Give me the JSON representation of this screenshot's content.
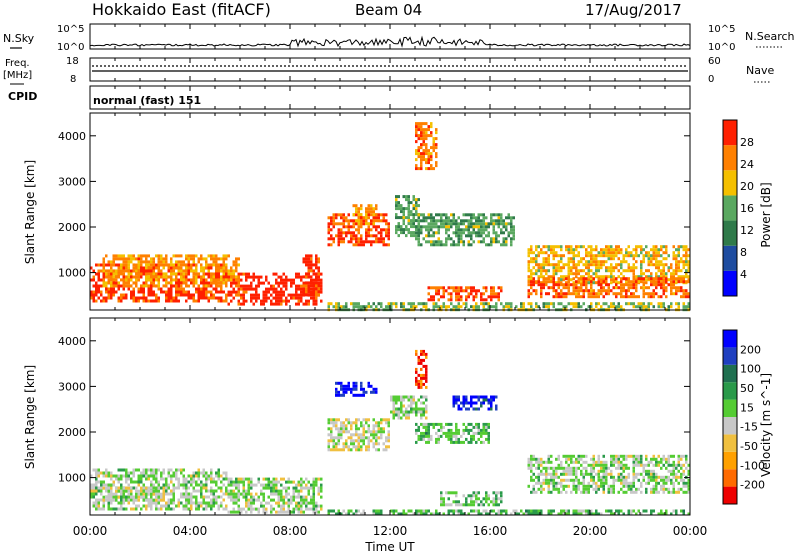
{
  "header": {
    "station": "Hokkaido East (fitACF)",
    "beam": "Beam 04",
    "date": "17/Aug/2017"
  },
  "top_panels": {
    "nsky_label": "N.Sky",
    "nsky_ticks": [
      "10^5",
      "10^0"
    ],
    "nsearch_label": "N.Search",
    "nsearch_ticks": [
      "10^5",
      "10^0"
    ],
    "freq_label_1": "Freq.",
    "freq_label_2": "[MHz]",
    "freq_ticks": [
      "18",
      "8"
    ],
    "nave_label": "Nave",
    "nave_ticks": [
      "60",
      "0"
    ],
    "cpid_label": "CPID",
    "cpid_text": "normal (fast) 151"
  },
  "x_axis": {
    "ticks": [
      "00:00",
      "04:00",
      "08:00",
      "12:00",
      "16:00",
      "20:00",
      "00:00"
    ],
    "label": "Time UT"
  },
  "colors": {
    "power": [
      "#0000ff",
      "#1e4ca0",
      "#2f7a4a",
      "#5aa860",
      "#f5c000",
      "#ff8000",
      "#ff2000"
    ],
    "velocity": [
      "#ee0000",
      "#ff6a00",
      "#ffa000",
      "#f0c040",
      "#c8c8c8",
      "#55cc33",
      "#2a9a4a",
      "#207050",
      "#2040c0",
      "#0000ff"
    ]
  },
  "chart_data": [
    {
      "type": "heatmap",
      "name": "power",
      "ylabel": "Slant Range [km]",
      "yticks": [
        "4000",
        "3000",
        "2000",
        "1000"
      ],
      "ylim": [
        180,
        4500
      ],
      "xlim_hours": [
        0,
        24
      ],
      "colorbar_label": "Power [dB]",
      "colorbar_ticks": [
        "28",
        "24",
        "20",
        "16",
        "12",
        "8",
        "4"
      ],
      "colorbar_range": [
        0,
        30
      ],
      "regions": [
        {
          "t": [
            0.0,
            5.5
          ],
          "r": [
            400,
            1200
          ],
          "value": 27
        },
        {
          "t": [
            5.5,
            9.3
          ],
          "r": [
            300,
            1000
          ],
          "value": 29
        },
        {
          "t": [
            0.5,
            6.0
          ],
          "r": [
            700,
            1400
          ],
          "value": 22
        },
        {
          "t": [
            8.5,
            9.2
          ],
          "r": [
            500,
            1400
          ],
          "value": 27
        },
        {
          "t": [
            9.5,
            12.0
          ],
          "r": [
            1600,
            2300
          ],
          "value": 27
        },
        {
          "t": [
            10.5,
            11.5
          ],
          "r": [
            2100,
            2500
          ],
          "value": 22
        },
        {
          "t": [
            12.2,
            13.2
          ],
          "r": [
            1800,
            2700
          ],
          "value": 14
        },
        {
          "t": [
            13.0,
            13.8
          ],
          "r": [
            3300,
            4300
          ],
          "value": 24
        },
        {
          "t": [
            13.0,
            17.0
          ],
          "r": [
            1600,
            2300
          ],
          "value": 14
        },
        {
          "t": [
            13.5,
            16.5
          ],
          "r": [
            400,
            700
          ],
          "value": 26
        },
        {
          "t": [
            17.5,
            24.0
          ],
          "r": [
            800,
            1600
          ],
          "value": 20
        },
        {
          "t": [
            17.5,
            24.0
          ],
          "r": [
            500,
            900
          ],
          "value": 25
        },
        {
          "t": [
            9.5,
            24.0
          ],
          "r": [
            200,
            350
          ],
          "value": 16
        }
      ]
    },
    {
      "type": "heatmap",
      "name": "velocity",
      "ylabel": "Slant Range [km]",
      "yticks": [
        "4000",
        "3000",
        "2000",
        "1000"
      ],
      "ylim": [
        180,
        4500
      ],
      "xlim_hours": [
        0,
        24
      ],
      "colorbar_label": "Velocity [m s^-1]",
      "colorbar_ticks": [
        "200",
        "100",
        "50",
        "15",
        "-15",
        "-50",
        "-100",
        "-200"
      ],
      "colorbar_range": [
        -250,
        250
      ],
      "regions": [
        {
          "t": [
            0.0,
            5.5
          ],
          "r": [
            300,
            1200
          ],
          "value": 0
        },
        {
          "t": [
            5.5,
            9.3
          ],
          "r": [
            250,
            1000
          ],
          "value": 0
        },
        {
          "t": [
            0.5,
            3.0
          ],
          "r": [
            500,
            800
          ],
          "value": -20
        },
        {
          "t": [
            9.5,
            12.0
          ],
          "r": [
            1600,
            2300
          ],
          "value": -30
        },
        {
          "t": [
            9.8,
            11.5
          ],
          "r": [
            2800,
            3100
          ],
          "value": 220
        },
        {
          "t": [
            12.0,
            13.5
          ],
          "r": [
            2300,
            2800
          ],
          "value": 0
        },
        {
          "t": [
            13.0,
            13.5
          ],
          "r": [
            3000,
            3800
          ],
          "value": -200
        },
        {
          "t": [
            14.5,
            16.3
          ],
          "r": [
            2500,
            2800
          ],
          "value": 200
        },
        {
          "t": [
            13.0,
            16.0
          ],
          "r": [
            1800,
            2200
          ],
          "value": 40
        },
        {
          "t": [
            14.0,
            16.5
          ],
          "r": [
            400,
            700
          ],
          "value": 30
        },
        {
          "t": [
            17.5,
            24.0
          ],
          "r": [
            700,
            1500
          ],
          "value": 0
        },
        {
          "t": [
            9.5,
            24.0
          ],
          "r": [
            200,
            300
          ],
          "value": 40
        }
      ]
    }
  ]
}
